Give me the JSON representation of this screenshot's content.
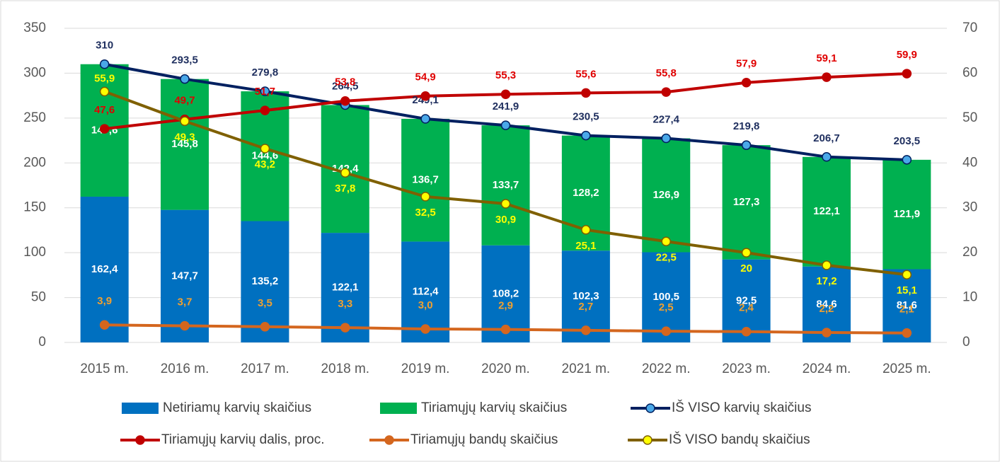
{
  "chart_data": {
    "type": "bar-line",
    "categories": [
      "2015 m.",
      "2016 m.",
      "2017 m.",
      "2018 m.",
      "2019 m.",
      "2020 m.",
      "2021 m.",
      "2022 m.",
      "2023 m.",
      "2024 m.",
      "2025 m."
    ],
    "ylim": [
      0,
      350
    ],
    "yticks": [
      0,
      50,
      100,
      150,
      200,
      250,
      300,
      350
    ],
    "y2lim": [
      0,
      70
    ],
    "y2ticks": [
      0,
      10,
      20,
      30,
      40,
      50,
      60,
      70
    ],
    "grid": true,
    "series": [
      {
        "name": "Netiriamų karvių skaičius",
        "kind": "bar",
        "color": "#0070c0",
        "values": [
          162.4,
          147.7,
          135.2,
          122.1,
          112.4,
          108.2,
          102.3,
          100.5,
          92.5,
          84.6,
          81.6
        ],
        "value_labels": [
          "162,4",
          "147,7",
          "135,2",
          "122,1",
          "112,4",
          "108,2",
          "102,3",
          "100,5",
          "92,5",
          "84,6",
          "81,6"
        ]
      },
      {
        "name": "Tiriamųjų karvių skaičius",
        "kind": "bar",
        "color": "#00b050",
        "values": [
          147.6,
          145.8,
          144.6,
          142.4,
          136.7,
          133.7,
          128.2,
          126.9,
          127.3,
          122.1,
          121.9
        ],
        "value_labels": [
          "147,6",
          "145,8",
          "144,6",
          "142,4",
          "136,7",
          "133,7",
          "128,2",
          "126,9",
          "127,3",
          "122,1",
          "121,9"
        ]
      },
      {
        "name": "IŠ VISO karvių skaičius",
        "kind": "line",
        "color": "#002060",
        "marker": "#4aa8e8",
        "values": [
          310,
          293.5,
          279.8,
          264.5,
          249.1,
          241.9,
          230.5,
          227.4,
          219.8,
          206.7,
          203.5
        ],
        "value_labels": [
          "310",
          "293,5",
          "279,8",
          "264,5",
          "249,1",
          "241,9",
          "230,5",
          "227,4",
          "219,8",
          "206,7",
          "203,5"
        ]
      },
      {
        "name": "Tiriamųjų karvių dalis, proc.",
        "kind": "line",
        "axis": "y2",
        "color": "#c00000",
        "marker": "#c00000",
        "values": [
          47.6,
          49.7,
          51.7,
          53.8,
          54.9,
          55.3,
          55.6,
          55.8,
          57.9,
          59.1,
          59.9
        ],
        "value_labels": [
          "47,6",
          "49,7",
          "51,7",
          "53,8",
          "54,9",
          "55,3",
          "55,6",
          "55,8",
          "57,9",
          "59,1",
          "59,9"
        ]
      },
      {
        "name": "Tiriamųjų bandų skaičius",
        "kind": "line",
        "axis": "y2",
        "color": "#d4661e",
        "marker": "#d4661e",
        "values": [
          3.9,
          3.7,
          3.5,
          3.3,
          3.0,
          2.9,
          2.7,
          2.5,
          2.4,
          2.2,
          2.1
        ],
        "value_labels": [
          "3,9",
          "3,7",
          "3,5",
          "3,3",
          "3,0",
          "2,9",
          "2,7",
          "2,5",
          "2,4",
          "2,2",
          "2,1"
        ]
      },
      {
        "name": "IŠ VISO bandų skaičius",
        "kind": "line",
        "axis": "y2",
        "color": "#7f6000",
        "marker": "#ffff00",
        "values": [
          55.9,
          49.3,
          43.2,
          37.8,
          32.5,
          30.9,
          25.1,
          22.5,
          20,
          17.2,
          15.1
        ],
        "value_labels": [
          "55,9",
          "49,3",
          "43,2",
          "37,8",
          "32,5",
          "30,9",
          "25,1",
          "22,5",
          "20",
          "17,2",
          "15,1"
        ]
      }
    ]
  }
}
